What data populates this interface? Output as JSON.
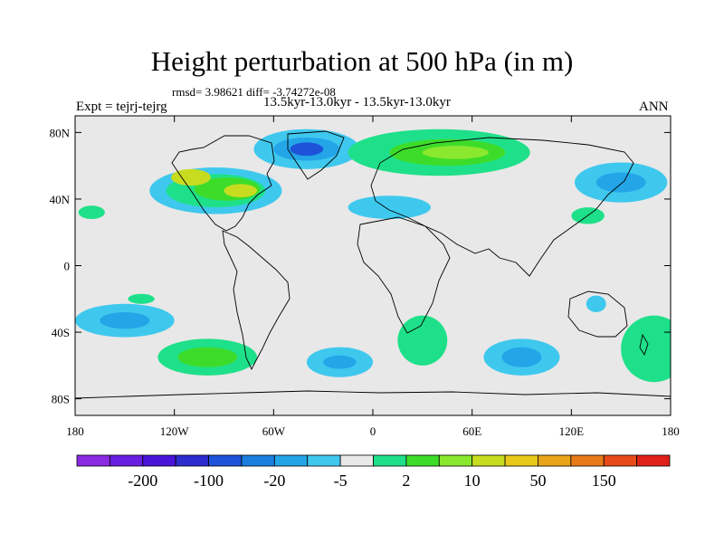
{
  "title": "Height perturbation at 500 hPa (in m)",
  "stats_line": "rmsd= 3.98621  diff= -3.74272e-08",
  "left_label": "Expt = tejrj-tejrg",
  "center_label": "13.5kyr-13.0kyr - 13.5kyr-13.0kyr",
  "right_label": "ANN",
  "lat_ticks": [
    {
      "label": "80N",
      "lat": 80
    },
    {
      "label": "40N",
      "lat": 40
    },
    {
      "label": "0",
      "lat": 0
    },
    {
      "label": "40S",
      "lat": -40
    },
    {
      "label": "80S",
      "lat": -80
    }
  ],
  "lon_ticks": [
    {
      "label": "180",
      "lon": -180
    },
    {
      "label": "120W",
      "lon": -120
    },
    {
      "label": "60W",
      "lon": -60
    },
    {
      "label": "0",
      "lon": 0
    },
    {
      "label": "60E",
      "lon": 60
    },
    {
      "label": "120E",
      "lon": 120
    },
    {
      "label": "180",
      "lon": 180
    }
  ],
  "map": {
    "lon_range": [
      -180,
      180
    ],
    "lat_range": [
      -90,
      90
    ],
    "land_color": "#e8e8e8"
  },
  "colorbar": {
    "colors": [
      "#8a2be2",
      "#6a1fe0",
      "#4a14d8",
      "#2c2ccf",
      "#1e52d8",
      "#1a7ee0",
      "#23a5e8",
      "#3fc8ee",
      "#e8e8e8",
      "#1fe08a",
      "#3ddc2a",
      "#8ae82e",
      "#c8dc1f",
      "#e8c81a",
      "#e8a51a",
      "#e87a1a",
      "#e84a1a",
      "#e0201a"
    ],
    "labels": [
      {
        "text": "-200",
        "index": 2
      },
      {
        "text": "-100",
        "index": 4
      },
      {
        "text": "-20",
        "index": 6
      },
      {
        "text": "-5",
        "index": 8
      },
      {
        "text": "2",
        "index": 10
      },
      {
        "text": "10",
        "index": 12
      },
      {
        "text": "50",
        "index": 14
      },
      {
        "text": "150",
        "index": 16
      }
    ]
  },
  "anomalies": [
    {
      "lon": -95,
      "lat": 45,
      "rx": 40,
      "ry": 14,
      "color": "#3fc8ee"
    },
    {
      "lon": -95,
      "lat": 45,
      "rx": 30,
      "ry": 10,
      "color": "#1fe08a"
    },
    {
      "lon": -88,
      "lat": 46,
      "rx": 20,
      "ry": 7,
      "color": "#3ddc2a"
    },
    {
      "lon": -80,
      "lat": 45,
      "rx": 10,
      "ry": 4,
      "color": "#c8dc1f"
    },
    {
      "lon": -110,
      "lat": 53,
      "rx": 12,
      "ry": 5,
      "color": "#c8dc1f"
    },
    {
      "lon": -40,
      "lat": 70,
      "rx": 32,
      "ry": 12,
      "color": "#3fc8ee"
    },
    {
      "lon": -40,
      "lat": 70,
      "rx": 20,
      "ry": 7,
      "color": "#23a5e8"
    },
    {
      "lon": -40,
      "lat": 70,
      "rx": 10,
      "ry": 4,
      "color": "#1e52d8"
    },
    {
      "lon": 40,
      "lat": 68,
      "rx": 55,
      "ry": 14,
      "color": "#1fe08a"
    },
    {
      "lon": 45,
      "lat": 68,
      "rx": 35,
      "ry": 8,
      "color": "#3ddc2a"
    },
    {
      "lon": 50,
      "lat": 68,
      "rx": 20,
      "ry": 4,
      "color": "#8ae82e"
    },
    {
      "lon": 150,
      "lat": 50,
      "rx": 28,
      "ry": 12,
      "color": "#3fc8ee"
    },
    {
      "lon": 150,
      "lat": 50,
      "rx": 15,
      "ry": 6,
      "color": "#23a5e8"
    },
    {
      "lon": 10,
      "lat": 35,
      "rx": 25,
      "ry": 7,
      "color": "#3fc8ee"
    },
    {
      "lon": -150,
      "lat": -33,
      "rx": 30,
      "ry": 10,
      "color": "#3fc8ee"
    },
    {
      "lon": -150,
      "lat": -33,
      "rx": 15,
      "ry": 5,
      "color": "#23a5e8"
    },
    {
      "lon": -100,
      "lat": -55,
      "rx": 30,
      "ry": 11,
      "color": "#1fe08a"
    },
    {
      "lon": -100,
      "lat": -55,
      "rx": 18,
      "ry": 6,
      "color": "#3ddc2a"
    },
    {
      "lon": -20,
      "lat": -58,
      "rx": 20,
      "ry": 9,
      "color": "#3fc8ee"
    },
    {
      "lon": -20,
      "lat": -58,
      "rx": 10,
      "ry": 4,
      "color": "#23a5e8"
    },
    {
      "lon": 90,
      "lat": -55,
      "rx": 23,
      "ry": 11,
      "color": "#3fc8ee"
    },
    {
      "lon": 90,
      "lat": -55,
      "rx": 12,
      "ry": 6,
      "color": "#23a5e8"
    },
    {
      "lon": 30,
      "lat": -45,
      "rx": 15,
      "ry": 15,
      "color": "#1fe08a"
    },
    {
      "lon": 170,
      "lat": -50,
      "rx": 20,
      "ry": 20,
      "color": "#1fe08a"
    },
    {
      "lon": 135,
      "lat": -23,
      "rx": 6,
      "ry": 5,
      "color": "#3fc8ee"
    },
    {
      "lon": -170,
      "lat": 32,
      "rx": 8,
      "ry": 4,
      "color": "#1fe08a"
    },
    {
      "lon": 130,
      "lat": 30,
      "rx": 10,
      "ry": 5,
      "color": "#1fe08a"
    },
    {
      "lon": -140,
      "lat": -20,
      "rx": 8,
      "ry": 3,
      "color": "#1fe08a"
    }
  ]
}
